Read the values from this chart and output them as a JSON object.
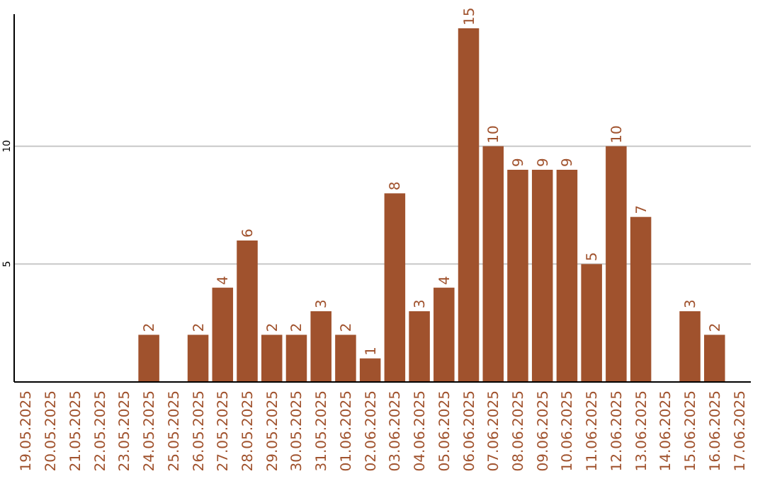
{
  "chart_data": {
    "type": "bar",
    "categories": [
      "19.05.2025",
      "20.05.2025",
      "21.05.2025",
      "22.05.2025",
      "23.05.2025",
      "24.05.2025",
      "25.05.2025",
      "26.05.2025",
      "27.05.2025",
      "28.05.2025",
      "29.05.2025",
      "30.05.2025",
      "31.05.2025",
      "01.06.2025",
      "02.06.2025",
      "03.06.2025",
      "04.06.2025",
      "05.06.2025",
      "06.06.2025",
      "07.06.2025",
      "08.06.2025",
      "09.06.2025",
      "10.06.2025",
      "11.06.2025",
      "12.06.2025",
      "13.06.2025",
      "14.06.2025",
      "15.06.2025",
      "16.06.2025",
      "17.06.2025"
    ],
    "values": [
      null,
      null,
      null,
      null,
      null,
      2,
      null,
      2,
      4,
      6,
      2,
      2,
      3,
      2,
      1,
      8,
      3,
      4,
      15,
      10,
      9,
      9,
      9,
      5,
      10,
      7,
      null,
      3,
      2,
      null
    ],
    "color": "#a0522d",
    "ylim": [
      0,
      15.6
    ],
    "yticks": [
      5,
      10
    ],
    "grid": "y",
    "data_labels": true
  }
}
